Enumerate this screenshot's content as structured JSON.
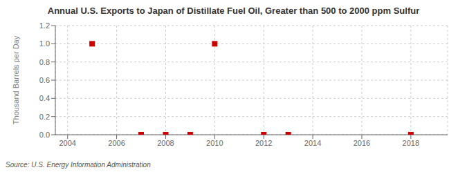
{
  "chart_data": {
    "type": "scatter",
    "title": "Annual U.S. Exports to Japan of Distillate Fuel Oil, Greater than 500 to 2000 ppm Sulfur",
    "ylabel": "Thousand Barrels per Day",
    "annotation": "Source: U.S. Energy Information Administration",
    "x": [
      2005,
      2007,
      2008,
      2009,
      2010,
      2012,
      2013,
      2018
    ],
    "values": [
      1.0,
      0.0,
      0.0,
      0.0,
      1.0,
      0.0,
      0.0,
      0.0
    ],
    "color": "#cc0000",
    "marker": "square",
    "xlim": [
      2003.5,
      2019.5
    ],
    "ylim": [
      0.0,
      1.2
    ],
    "xticks": [
      2004,
      2006,
      2008,
      2010,
      2012,
      2014,
      2016,
      2018
    ],
    "yticks": [
      {
        "value": 0,
        "label": "0.0"
      },
      0.2,
      0.4,
      0.6,
      0.8,
      {
        "value": 1,
        "label": "1.0"
      },
      1.2
    ],
    "grid": true
  }
}
